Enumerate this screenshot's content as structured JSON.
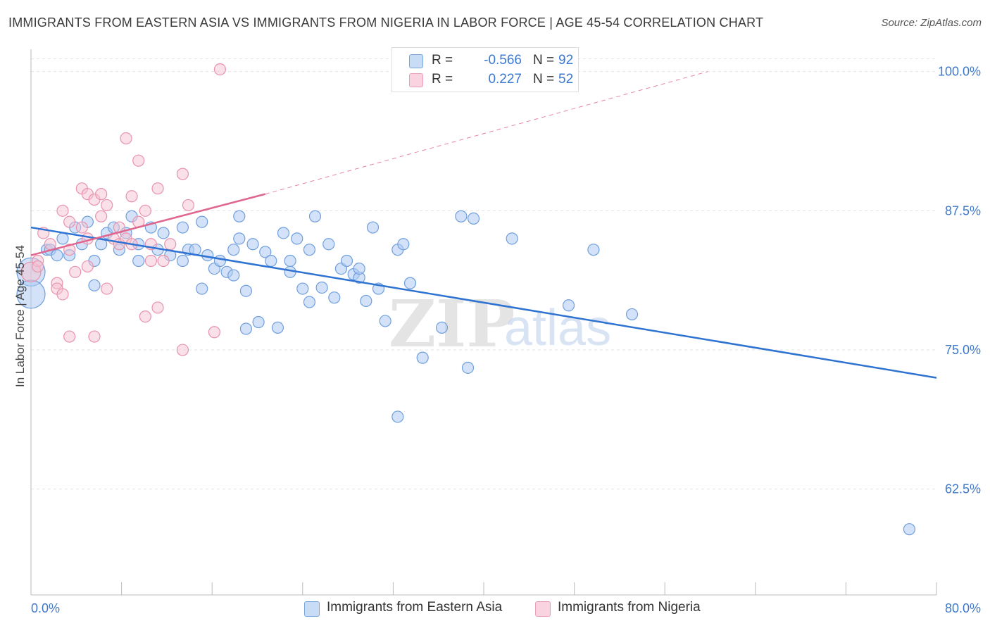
{
  "title": "IMMIGRANTS FROM EASTERN ASIA VS IMMIGRANTS FROM NIGERIA IN LABOR FORCE | AGE 45-54 CORRELATION CHART",
  "source": "Source: ZipAtlas.com",
  "legend": {
    "rows": [
      {
        "r_label": "R =",
        "r_value": "-0.566",
        "n_label": "N =",
        "n_value": "92"
      },
      {
        "r_label": "R =",
        "r_value": "0.227",
        "n_label": "N =",
        "n_value": "52"
      }
    ]
  },
  "colors": {
    "blue_fill": "#aecbf2",
    "blue_stroke": "#6f9fdd",
    "blue_line": "#2e72d2",
    "pink_fill": "#f6c1d2",
    "pink_stroke": "#e893ad",
    "pink_line": "#e0668f",
    "tick_label": "#3f78c9",
    "grid": "#e3e3e3"
  },
  "watermark": {
    "zip": "ZIP",
    "atlas": "atlas"
  },
  "chart_data": {
    "type": "scatter",
    "title": "IMMIGRANTS FROM EASTERN ASIA VS IMMIGRANTS FROM NIGERIA IN LABOR FORCE | AGE 45-54 CORRELATION CHART",
    "xlabel": "",
    "ylabel": "In Labor Force | Age 45-54",
    "xlim": [
      0,
      80
    ],
    "ylim": [
      53,
      102
    ],
    "x_tick_labels": [
      "0.0%",
      "80.0%"
    ],
    "y_ticks": [
      62.5,
      75.0,
      87.5,
      100.0
    ],
    "y_tick_labels": [
      "62.5%",
      "75.0%",
      "87.5%",
      "100.0%"
    ],
    "grid": true,
    "legend_position": "top-center",
    "series": [
      {
        "name": "Immigrants from Eastern Asia",
        "color": "#aecbf2",
        "trend": {
          "x": [
            0,
            80
          ],
          "y": [
            86.0,
            72.5
          ]
        },
        "points": [
          [
            0.0,
            82.0
          ],
          [
            0.0,
            80.0
          ],
          [
            1.4,
            84.0
          ],
          [
            1.7,
            84.0
          ],
          [
            2.3,
            83.5
          ],
          [
            2.8,
            85.0
          ],
          [
            3.4,
            83.5
          ],
          [
            3.9,
            86.0
          ],
          [
            4.5,
            84.5
          ],
          [
            5.0,
            86.5
          ],
          [
            5.6,
            83.0
          ],
          [
            5.6,
            80.8
          ],
          [
            6.2,
            84.5
          ],
          [
            6.7,
            85.5
          ],
          [
            7.3,
            86.0
          ],
          [
            7.8,
            84.0
          ],
          [
            8.4,
            85.5
          ],
          [
            9.5,
            84.5
          ],
          [
            9.5,
            83.0
          ],
          [
            8.9,
            87.0
          ],
          [
            10.6,
            86.0
          ],
          [
            11.2,
            84.0
          ],
          [
            11.7,
            85.5
          ],
          [
            12.3,
            83.5
          ],
          [
            13.4,
            86.0
          ],
          [
            13.4,
            83.0
          ],
          [
            13.9,
            84.0
          ],
          [
            14.5,
            84.0
          ],
          [
            15.1,
            86.5
          ],
          [
            15.1,
            80.5
          ],
          [
            15.6,
            83.5
          ],
          [
            16.2,
            82.3
          ],
          [
            16.7,
            83.0
          ],
          [
            17.3,
            82.0
          ],
          [
            17.9,
            84.0
          ],
          [
            17.9,
            81.7
          ],
          [
            18.4,
            87.0
          ],
          [
            18.4,
            85.0
          ],
          [
            19.0,
            80.3
          ],
          [
            19.6,
            84.5
          ],
          [
            19.0,
            76.9
          ],
          [
            20.1,
            77.5
          ],
          [
            20.7,
            83.8
          ],
          [
            21.2,
            83.0
          ],
          [
            21.8,
            77.0
          ],
          [
            22.3,
            85.5
          ],
          [
            22.9,
            83.0
          ],
          [
            22.9,
            82.0
          ],
          [
            23.5,
            85.0
          ],
          [
            24.0,
            80.5
          ],
          [
            24.6,
            79.3
          ],
          [
            24.6,
            84.0
          ],
          [
            25.1,
            87.0
          ],
          [
            25.7,
            80.6
          ],
          [
            26.3,
            84.5
          ],
          [
            26.8,
            79.7
          ],
          [
            27.4,
            82.3
          ],
          [
            27.9,
            83.0
          ],
          [
            28.5,
            81.8
          ],
          [
            29.0,
            81.5
          ],
          [
            29.0,
            82.3
          ],
          [
            29.6,
            79.4
          ],
          [
            30.2,
            86.0
          ],
          [
            30.7,
            80.5
          ],
          [
            31.3,
            77.6
          ],
          [
            32.4,
            84.0
          ],
          [
            32.4,
            69.0
          ],
          [
            32.9,
            84.5
          ],
          [
            33.5,
            81.0
          ],
          [
            34.6,
            74.3
          ],
          [
            36.3,
            77.0
          ],
          [
            38.0,
            87.0
          ],
          [
            38.6,
            73.4
          ],
          [
            39.1,
            86.8
          ],
          [
            42.5,
            85.0
          ],
          [
            47.5,
            79.0
          ],
          [
            49.7,
            84.0
          ],
          [
            53.1,
            78.2
          ],
          [
            77.6,
            58.9
          ]
        ]
      },
      {
        "name": "Immigrants from Nigeria",
        "color": "#f6c1d2",
        "trend": {
          "x": [
            0,
            20.7
          ],
          "y": [
            83.5,
            89.0
          ]
        },
        "trend_extension": {
          "x": [
            20.7,
            59.8
          ],
          "y": [
            89.0,
            100.0
          ]
        },
        "points": [
          [
            0.0,
            82.0
          ],
          [
            0.6,
            83.0
          ],
          [
            0.6,
            82.5
          ],
          [
            1.1,
            85.5
          ],
          [
            1.7,
            84.5
          ],
          [
            2.3,
            81.0
          ],
          [
            2.3,
            80.5
          ],
          [
            2.8,
            80.0
          ],
          [
            2.8,
            87.5
          ],
          [
            3.4,
            86.5
          ],
          [
            3.4,
            76.2
          ],
          [
            3.4,
            84.0
          ],
          [
            3.9,
            82.0
          ],
          [
            4.5,
            89.5
          ],
          [
            4.5,
            86.0
          ],
          [
            5.0,
            82.5
          ],
          [
            5.0,
            89.0
          ],
          [
            5.6,
            88.5
          ],
          [
            5.6,
            76.2
          ],
          [
            5.0,
            85.0
          ],
          [
            6.2,
            89.0
          ],
          [
            6.2,
            87.0
          ],
          [
            6.7,
            88.0
          ],
          [
            6.7,
            80.5
          ],
          [
            7.3,
            85.0
          ],
          [
            7.8,
            86.0
          ],
          [
            7.8,
            84.5
          ],
          [
            8.4,
            94.0
          ],
          [
            8.4,
            85.0
          ],
          [
            8.9,
            88.8
          ],
          [
            8.9,
            84.5
          ],
          [
            9.5,
            92.0
          ],
          [
            9.5,
            86.5
          ],
          [
            10.1,
            87.5
          ],
          [
            10.1,
            78.0
          ],
          [
            10.6,
            83.0
          ],
          [
            10.6,
            84.5
          ],
          [
            11.2,
            78.8
          ],
          [
            11.2,
            89.5
          ],
          [
            11.7,
            83.0
          ],
          [
            12.3,
            84.5
          ],
          [
            13.4,
            75.0
          ],
          [
            13.4,
            90.8
          ],
          [
            13.9,
            88.0
          ],
          [
            16.2,
            76.6
          ],
          [
            16.7,
            100.2
          ]
        ]
      }
    ]
  },
  "bottom_legend": [
    {
      "label": "Immigrants from Eastern Asia"
    },
    {
      "label": "Immigrants from Nigeria"
    }
  ]
}
